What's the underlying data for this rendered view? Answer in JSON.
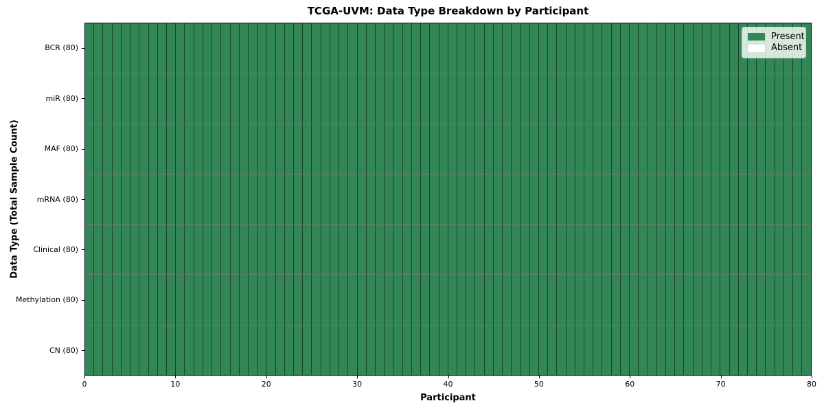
{
  "figure": {
    "title": "TCGA-UVM: Data Type Breakdown by Participant",
    "xlabel": "Participant",
    "ylabel": "Data Type (Total Sample Count)"
  },
  "legend": {
    "items": [
      {
        "label": "Present",
        "color": "#338757"
      },
      {
        "label": "Absent",
        "color": "#ffffff"
      }
    ]
  },
  "chart_data": {
    "type": "heatmap",
    "title": "TCGA-UVM: Data Type Breakdown by Participant",
    "xlabel": "Participant",
    "ylabel": "Data Type (Total Sample Count)",
    "xlim": [
      0,
      80
    ],
    "x_ticks": [
      0,
      10,
      20,
      30,
      40,
      50,
      60,
      70,
      80
    ],
    "n_participants": 80,
    "rows": [
      {
        "label": "BCR (80)",
        "total_samples": 80,
        "present_count": 80,
        "absent_count": 0
      },
      {
        "label": "miR (80)",
        "total_samples": 80,
        "present_count": 80,
        "absent_count": 0
      },
      {
        "label": "MAF (80)",
        "total_samples": 80,
        "present_count": 80,
        "absent_count": 0
      },
      {
        "label": "mRNA (80)",
        "total_samples": 80,
        "present_count": 80,
        "absent_count": 0
      },
      {
        "label": "Clinical (80)",
        "total_samples": 80,
        "present_count": 80,
        "absent_count": 0
      },
      {
        "label": "Methylation (80)",
        "total_samples": 80,
        "present_count": 80,
        "absent_count": 0
      },
      {
        "label": "CN (80)",
        "total_samples": 80,
        "present_count": 80,
        "absent_count": 0
      }
    ],
    "states": [
      "Present",
      "Absent"
    ],
    "colors": {
      "present": "#338757",
      "absent": "#ffffff",
      "cell_edge": "rgba(0,0,0,0.5)"
    },
    "legend_position": "upper right",
    "grid": false
  }
}
